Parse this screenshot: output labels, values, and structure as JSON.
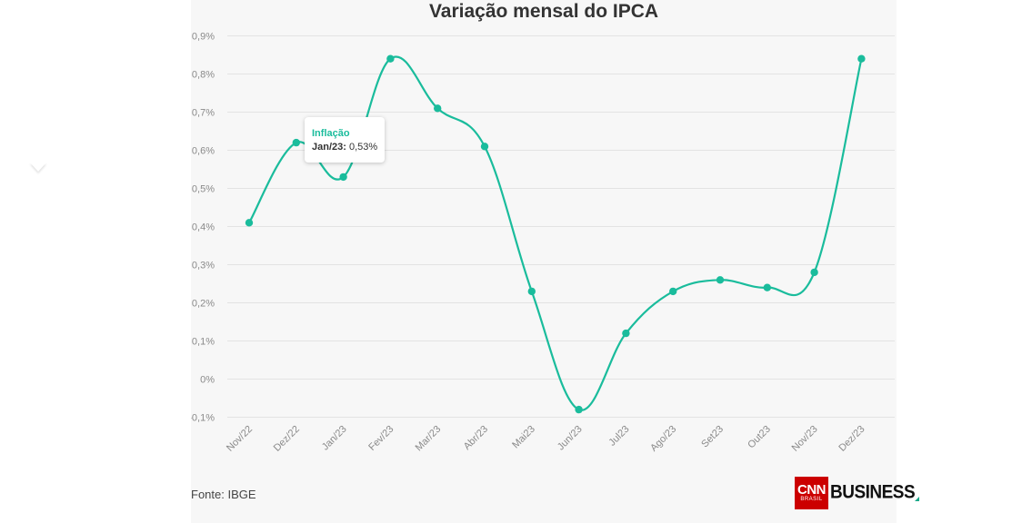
{
  "source_text": "Fonte: IBGE",
  "logo": {
    "brand": "CNN",
    "sub": "BRASIL",
    "business": "BUSINESS"
  },
  "tooltip": {
    "series": "Inflação",
    "label": "Jan/23:",
    "value": "0,53%"
  },
  "colors": {
    "line": "#1abc9c",
    "title": "#333333",
    "grid": "#e3e3e3",
    "tick": "#8a8a8a",
    "logo_red": "#cc0000"
  },
  "chart_data": {
    "type": "line",
    "title": "Variação mensal do IPCA",
    "xlabel": "",
    "ylabel": "",
    "categories": [
      "Nov/22",
      "Dez/22",
      "Jan/23",
      "Fev/23",
      "Mar/23",
      "Abr/23",
      "Mai23",
      "Jun/23",
      "Jul23",
      "Ago/23",
      "Set23",
      "Out23",
      "Nov/23",
      "Dez/23"
    ],
    "series": [
      {
        "name": "Inflação",
        "values": [
          0.41,
          0.62,
          0.53,
          0.84,
          0.71,
          0.61,
          0.23,
          -0.08,
          0.12,
          0.23,
          0.26,
          0.24,
          0.28,
          0.84
        ]
      }
    ],
    "yticks": [
      -0.1,
      0,
      0.1,
      0.2,
      0.3,
      0.4,
      0.5,
      0.6,
      0.7,
      0.8,
      0.9
    ],
    "ytick_labels": [
      "-0,1%",
      "0%",
      "0,1%",
      "0,2%",
      "0,3%",
      "0,4%",
      "0,5%",
      "0,6%",
      "0,7%",
      "0,8%",
      "0,9%"
    ],
    "ylim": [
      -0.1,
      0.9
    ],
    "grid": true,
    "legend": "none",
    "curve": "smooth"
  }
}
